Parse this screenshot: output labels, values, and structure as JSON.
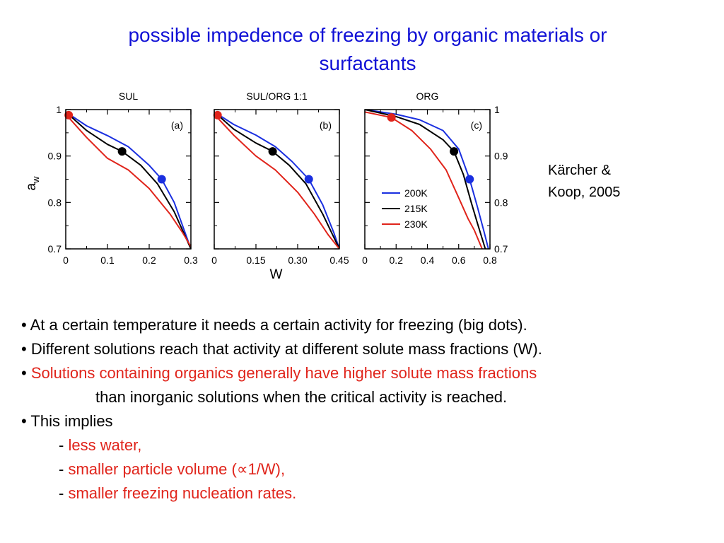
{
  "slide": {
    "title_line1": "possible impedence of freezing by organic materials or",
    "title_line2": "surfactants",
    "citation_line1": "Kärcher &",
    "citation_line2": "Koop, 2005"
  },
  "colors": {
    "title": "#1111d6",
    "highlight": "#e0241b",
    "series_200K": "#1a2fe0",
    "series_215K": "#000000",
    "series_230K": "#e0241b"
  },
  "bullets": {
    "b1": "• At a certain temperature it needs a certain activity for freezing (big dots).",
    "b2": "• Different solutions reach that activity at different solute mass fractions (W).",
    "b3_bullet": "• ",
    "b3_red": "Solutions containing organics generally have higher solute mass fractions",
    "b3_cont": "than inorganic solutions when the critical activity is reached.",
    "b4": "• This implies",
    "sub_dash": "- ",
    "sub1": "less water,",
    "sub2": "smaller particle volume (∝1/W),",
    "sub3": "smaller freezing nucleation rates."
  },
  "chart_data": [
    {
      "type": "line",
      "title": "SUL",
      "panel_label": "(a)",
      "xlabel": "",
      "ylabel": "a",
      "ylabel_sub": "w",
      "xlim": [
        0,
        0.3
      ],
      "ylim": [
        0.7,
        1.0
      ],
      "xticks": [
        0,
        0.1,
        0.2,
        0.3
      ],
      "xtick_labels": [
        "0",
        "0.1",
        "0.2",
        "0.3"
      ],
      "yticks": [
        0.7,
        0.8,
        0.9,
        1.0
      ],
      "ytick_labels": [
        "0.7",
        "0.8",
        "0.9",
        "1"
      ],
      "series": [
        {
          "name": "200K",
          "x": [
            0,
            0.05,
            0.1,
            0.15,
            0.2,
            0.23,
            0.26,
            0.29,
            0.3
          ],
          "y": [
            0.995,
            0.965,
            0.944,
            0.92,
            0.88,
            0.85,
            0.8,
            0.725,
            0.7
          ]
        },
        {
          "name": "215K",
          "x": [
            0,
            0.05,
            0.1,
            0.135,
            0.18,
            0.22,
            0.26,
            0.29,
            0.3
          ],
          "y": [
            0.995,
            0.955,
            0.925,
            0.91,
            0.88,
            0.84,
            0.78,
            0.72,
            0.7
          ]
        },
        {
          "name": "230K",
          "x": [
            0,
            0.05,
            0.1,
            0.15,
            0.2,
            0.25,
            0.28,
            0.3
          ],
          "y": [
            0.99,
            0.94,
            0.895,
            0.87,
            0.83,
            0.775,
            0.735,
            0.705
          ]
        }
      ],
      "markers": [
        {
          "series": "215K",
          "x": 0.135,
          "y": 0.91
        },
        {
          "series": "200K",
          "x": 0.23,
          "y": 0.85
        },
        {
          "series": "230K",
          "x": 0.007,
          "y": 0.988
        }
      ]
    },
    {
      "type": "line",
      "title": "SUL/ORG 1:1",
      "panel_label": "(b)",
      "xlabel": "W",
      "ylabel": "",
      "xlim": [
        0,
        0.45
      ],
      "ylim": [
        0.7,
        1.0
      ],
      "xticks": [
        0,
        0.15,
        0.3,
        0.45
      ],
      "xtick_labels": [
        "0",
        "0.15",
        "0.30",
        "0.45"
      ],
      "yticks": [
        0.7,
        0.8,
        0.9,
        1.0
      ],
      "ytick_labels": [],
      "series": [
        {
          "name": "200K",
          "x": [
            0,
            0.07,
            0.15,
            0.22,
            0.28,
            0.34,
            0.39,
            0.43,
            0.45
          ],
          "y": [
            0.995,
            0.968,
            0.945,
            0.92,
            0.888,
            0.85,
            0.795,
            0.735,
            0.7
          ]
        },
        {
          "name": "215K",
          "x": [
            0,
            0.07,
            0.15,
            0.21,
            0.27,
            0.33,
            0.39,
            0.43,
            0.45
          ],
          "y": [
            0.995,
            0.958,
            0.928,
            0.91,
            0.88,
            0.84,
            0.775,
            0.725,
            0.7
          ]
        },
        {
          "name": "230K",
          "x": [
            0,
            0.07,
            0.15,
            0.22,
            0.3,
            0.36,
            0.41,
            0.45
          ],
          "y": [
            0.99,
            0.945,
            0.9,
            0.87,
            0.822,
            0.775,
            0.73,
            0.7
          ]
        }
      ],
      "markers": [
        {
          "series": "215K",
          "x": 0.21,
          "y": 0.91
        },
        {
          "series": "200K",
          "x": 0.34,
          "y": 0.85
        },
        {
          "series": "230K",
          "x": 0.012,
          "y": 0.988
        }
      ]
    },
    {
      "type": "line",
      "title": "ORG",
      "panel_label": "(c)",
      "xlabel": "",
      "ylabel": "",
      "xlim": [
        0,
        0.8
      ],
      "ylim": [
        0.7,
        1.0
      ],
      "xticks": [
        0,
        0.2,
        0.4,
        0.6,
        0.8
      ],
      "xtick_labels": [
        "0",
        "0.2",
        "0.4",
        "0.6",
        "0.8"
      ],
      "yticks": [
        0.7,
        0.8,
        0.9,
        1.0
      ],
      "ytick_labels": [
        "0.7",
        "0.8",
        "0.9",
        "1"
      ],
      "legend": "middle-left",
      "series": [
        {
          "name": "200K",
          "x": [
            0,
            0.2,
            0.35,
            0.5,
            0.6,
            0.67,
            0.72,
            0.76,
            0.79
          ],
          "y": [
            1.0,
            0.99,
            0.978,
            0.955,
            0.915,
            0.85,
            0.79,
            0.74,
            0.7
          ]
        },
        {
          "name": "215K",
          "x": [
            0,
            0.2,
            0.35,
            0.5,
            0.57,
            0.63,
            0.68,
            0.72,
            0.77
          ],
          "y": [
            1.0,
            0.985,
            0.968,
            0.935,
            0.91,
            0.86,
            0.8,
            0.755,
            0.7
          ]
        },
        {
          "name": "230K",
          "x": [
            0,
            0.17,
            0.3,
            0.42,
            0.52,
            0.6,
            0.66,
            0.7,
            0.75
          ],
          "y": [
            0.995,
            0.983,
            0.955,
            0.915,
            0.87,
            0.81,
            0.765,
            0.74,
            0.7
          ]
        }
      ],
      "markers": [
        {
          "series": "215K",
          "x": 0.57,
          "y": 0.91
        },
        {
          "series": "200K",
          "x": 0.67,
          "y": 0.85
        },
        {
          "series": "230K",
          "x": 0.17,
          "y": 0.983
        }
      ]
    }
  ]
}
